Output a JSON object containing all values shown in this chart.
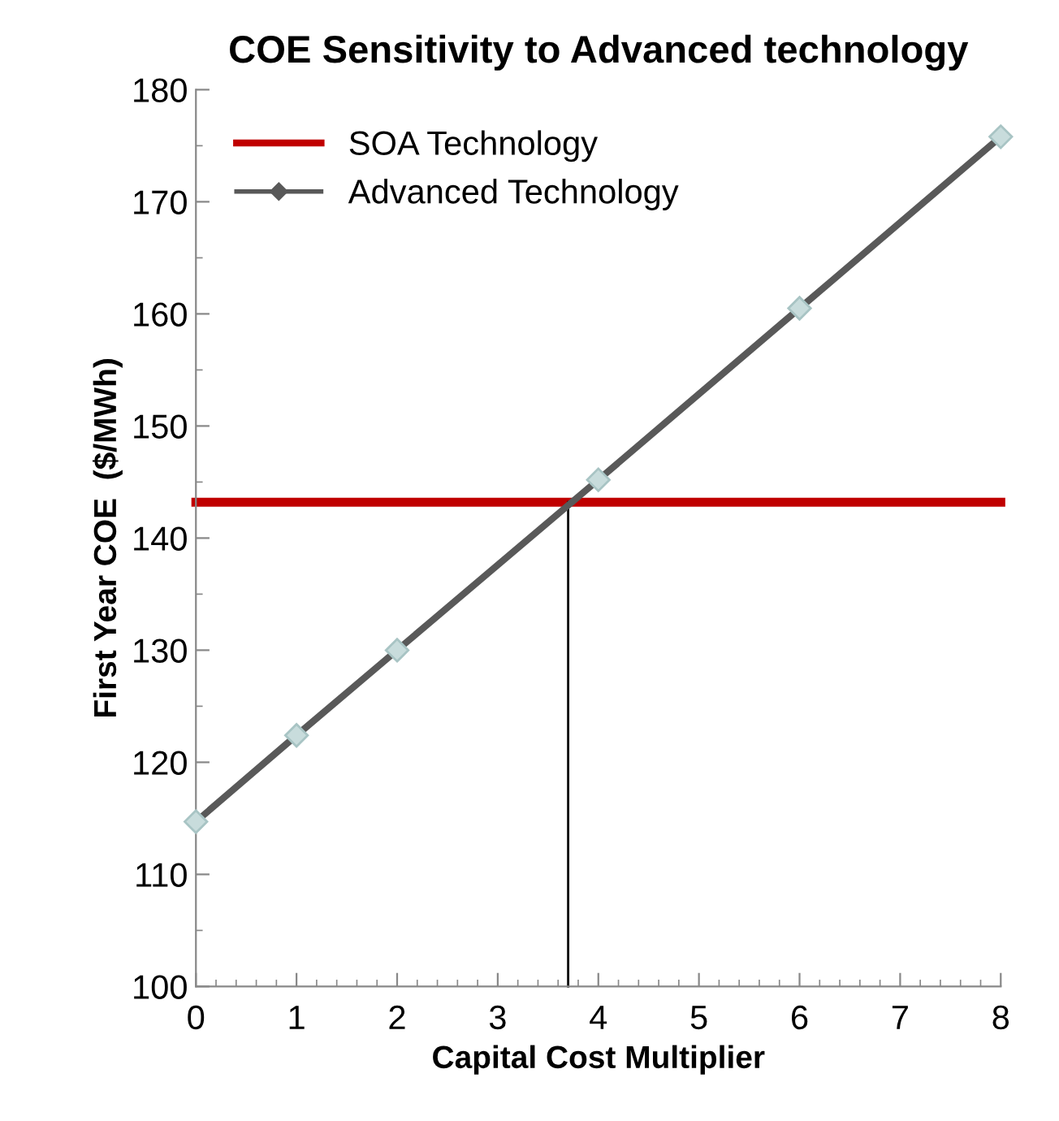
{
  "chart_data": {
    "type": "line",
    "title": "COE Sensitivity to Advanced technology",
    "xlabel": "Capital Cost Multiplier",
    "ylabel": "First Year COE  ($/MWh)",
    "series": [
      {
        "name": "SOA Technology",
        "color": "#c00000",
        "x": [
          0,
          8
        ],
        "values": [
          143.2,
          143.2
        ],
        "marker": "none"
      },
      {
        "name": "Advanced Technology",
        "color": "#595959",
        "x": [
          0,
          1,
          2,
          4,
          6,
          8
        ],
        "values": [
          114.7,
          122.4,
          130.0,
          145.2,
          160.5,
          175.8
        ],
        "marker": "diamond"
      },
      {
        "color": "#000000",
        "x": [
          3.7,
          3.7
        ],
        "values": [
          100,
          143.2
        ],
        "marker": "none"
      }
    ],
    "xlim": [
      0,
      8
    ],
    "xticks": [
      0,
      1,
      2,
      3,
      4,
      5,
      6,
      7,
      8
    ],
    "ylim": [
      100,
      180
    ],
    "yticks": [
      100,
      110,
      120,
      130,
      140,
      150,
      160,
      170,
      180
    ],
    "grid": false,
    "legend": "top left"
  }
}
